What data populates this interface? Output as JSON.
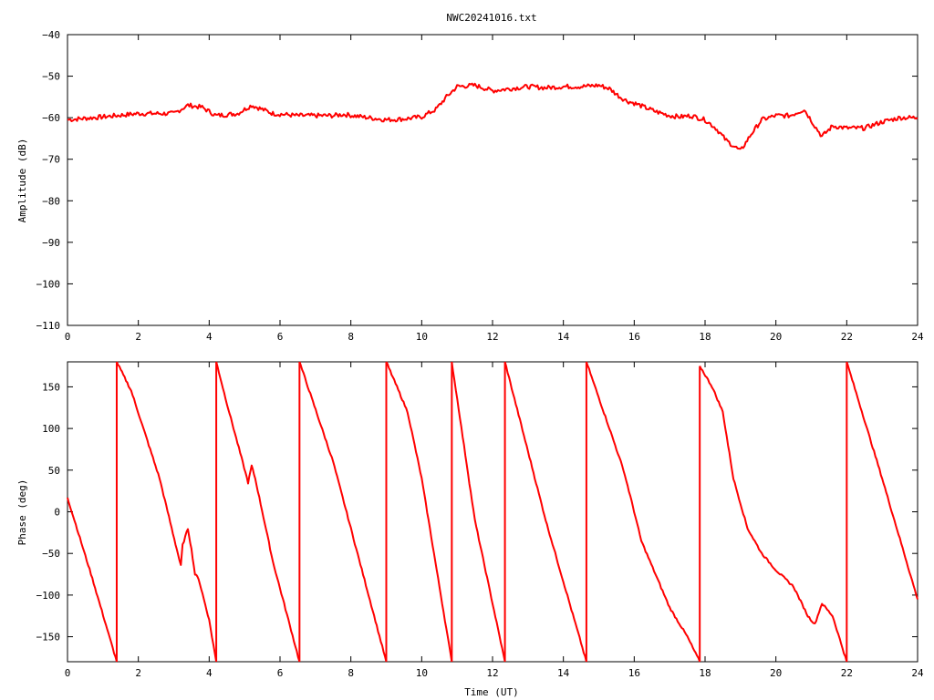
{
  "chart_data": [
    {
      "type": "line",
      "title": "NWC20241016.txt",
      "xlabel": "",
      "ylabel": "Amplitude (dB)",
      "xlim": [
        0,
        24
      ],
      "ylim": [
        -110,
        -40
      ],
      "grid": false,
      "x_ticks": [
        "0",
        "2",
        "4",
        "6",
        "8",
        "10",
        "12",
        "14",
        "16",
        "18",
        "20",
        "22",
        "24"
      ],
      "y_ticks": [
        "-40",
        "-50",
        "-60",
        "-70",
        "-80",
        "-90",
        "-100",
        "-110"
      ],
      "color": "#ff0000",
      "series": [
        {
          "x": [
            0,
            1,
            2,
            3,
            3.4,
            3.8,
            4.2,
            4.8,
            5.2,
            5.8,
            6.5,
            7.5,
            7.8,
            8.5,
            9,
            9.5,
            10,
            10.4,
            10.7,
            11,
            11.5,
            12,
            12.5,
            13,
            13.5,
            14,
            14.5,
            15,
            15.3,
            15.6,
            15.8,
            16,
            16.3,
            16.6,
            17,
            17.3,
            17.6,
            18,
            18.3,
            18.6,
            19,
            19.3,
            19.6,
            20,
            20.4,
            20.8,
            21.1,
            21.3,
            21.6,
            22,
            22.5,
            23,
            23.5,
            24
          ],
          "y": [
            -60.5,
            -59.8,
            -59,
            -59,
            -57,
            -57.5,
            -59.5,
            -59,
            -57,
            -59,
            -59.5,
            -59.5,
            -59.2,
            -60,
            -60.5,
            -60.3,
            -59.8,
            -58,
            -55,
            -52.5,
            -52.2,
            -53.5,
            -53,
            -52.5,
            -52.8,
            -52.5,
            -52.5,
            -52.2,
            -53,
            -55,
            -56,
            -56.5,
            -57.5,
            -58.5,
            -59.5,
            -59.8,
            -59.5,
            -60.5,
            -62.5,
            -65.5,
            -68,
            -64,
            -60.5,
            -59.5,
            -59.5,
            -58,
            -62,
            -64.5,
            -62,
            -62.5,
            -62.5,
            -61,
            -60,
            -60
          ]
        }
      ]
    },
    {
      "type": "line",
      "title": "",
      "xlabel": "Time (UT)",
      "ylabel": "Phase (deg)",
      "xlim": [
        0,
        24
      ],
      "ylim": [
        -180,
        180
      ],
      "grid": false,
      "x_ticks": [
        "0",
        "2",
        "4",
        "6",
        "8",
        "10",
        "12",
        "14",
        "16",
        "18",
        "20",
        "22",
        "24"
      ],
      "y_ticks": [
        "150",
        "100",
        "50",
        "0",
        "-50",
        "-100",
        "-150"
      ],
      "color": "#ff0000",
      "series": [
        {
          "segments": [
            {
              "x": [
                0,
                0.7,
                1.39
              ],
              "y": [
                17,
                -80,
                -180
              ]
            },
            {
              "x": [
                1.39,
                1.8,
                2.6,
                3.2,
                3.25,
                3.4,
                3.5,
                3.6,
                3.7,
                4.0,
                4.2
              ],
              "y": [
                180,
                145,
                40,
                -65,
                -40,
                -20,
                -45,
                -75,
                -80,
                -130,
                -180
              ]
            },
            {
              "x": [
                4.2,
                4.5,
                5.1,
                5.2,
                5.3,
                5.8,
                6.55
              ],
              "y": [
                180,
                130,
                35,
                55,
                40,
                -60,
                -180
              ]
            },
            {
              "x": [
                6.55,
                7.5,
                9.0
              ],
              "y": [
                180,
                60,
                -180
              ]
            },
            {
              "x": [
                9.0,
                9.6,
                10.0,
                10.5,
                10.85
              ],
              "y": [
                180,
                120,
                40,
                -90,
                -180
              ]
            },
            {
              "x": [
                10.85,
                11.5,
                12.35
              ],
              "y": [
                180,
                -10,
                -180
              ]
            },
            {
              "x": [
                12.35,
                13.5,
                14.65
              ],
              "y": [
                180,
                -10,
                -180
              ]
            },
            {
              "x": [
                14.65,
                15.3,
                15.7,
                16.0,
                16.2,
                16.6,
                17.0,
                17.5,
                17.85
              ],
              "y": [
                180,
                100,
                50,
                0,
                -35,
                -75,
                -115,
                -150,
                -180
              ]
            },
            {
              "x": [
                17.85,
                18.2,
                18.5,
                18.8,
                19.2,
                19.6,
                20.0,
                20.5,
                20.9,
                21.1,
                21.3,
                21.6,
                22.0
              ],
              "y": [
                175,
                150,
                120,
                40,
                -20,
                -50,
                -70,
                -90,
                -125,
                -135,
                -110,
                -125,
                -180
              ]
            },
            {
              "x": [
                22.0,
                23.0,
                24.0
              ],
              "y": [
                180,
                40,
                -105
              ]
            }
          ]
        }
      ]
    }
  ]
}
